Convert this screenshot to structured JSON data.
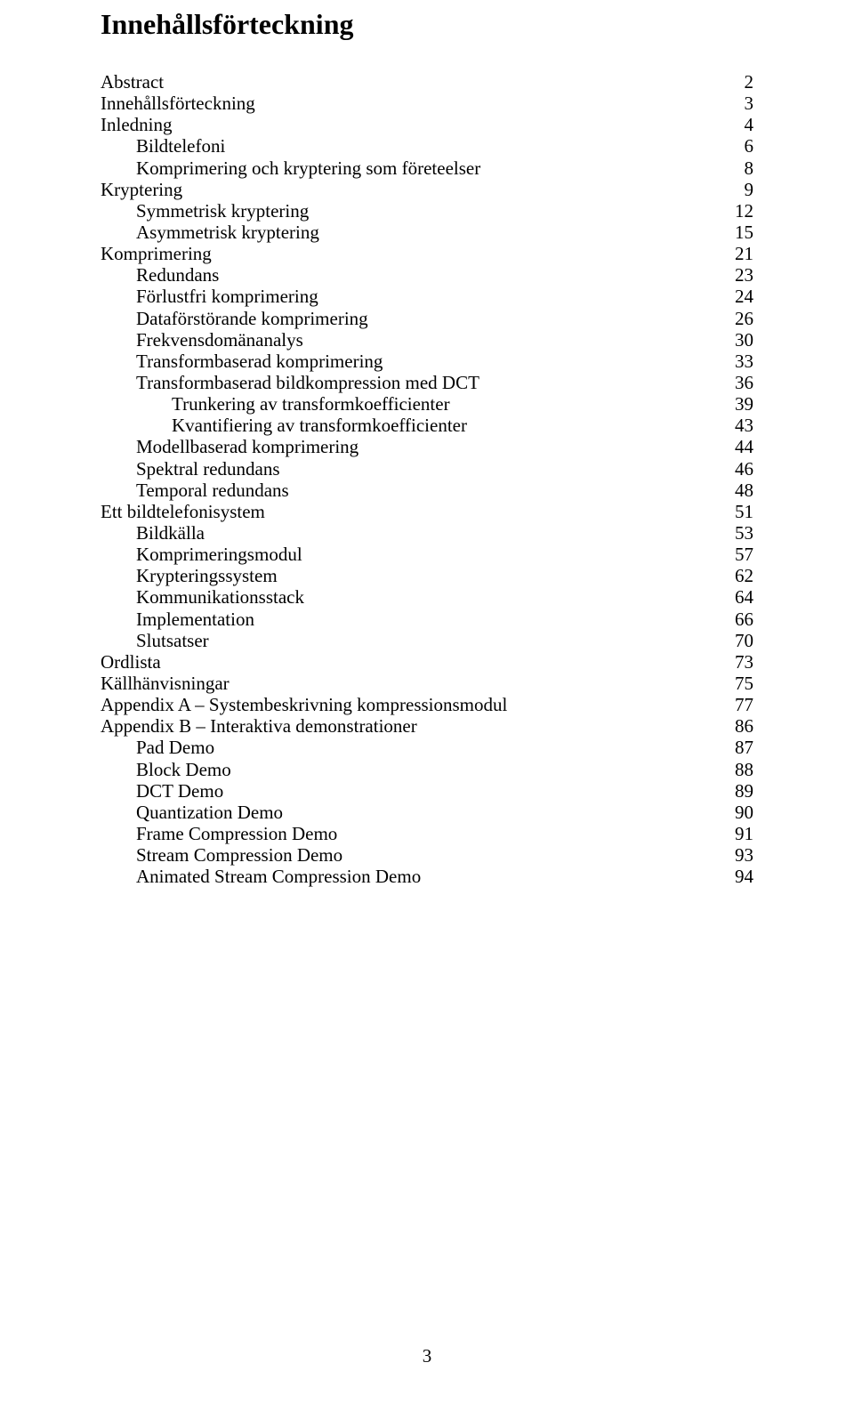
{
  "title": "Innehållsförteckning",
  "page_number": "3",
  "toc": [
    {
      "label": "Abstract",
      "page": "2",
      "indent": 0
    },
    {
      "label": "Innehållsförteckning",
      "page": "3",
      "indent": 0
    },
    {
      "label": "Inledning",
      "page": "4",
      "indent": 0
    },
    {
      "label": "Bildtelefoni",
      "page": "6",
      "indent": 1
    },
    {
      "label": "Komprimering och kryptering som företeelser",
      "page": "8",
      "indent": 1
    },
    {
      "label": "Kryptering",
      "page": "9",
      "indent": 0
    },
    {
      "label": "Symmetrisk kryptering",
      "page": "12",
      "indent": 1
    },
    {
      "label": "Asymmetrisk kryptering",
      "page": "15",
      "indent": 1
    },
    {
      "label": "Komprimering",
      "page": "21",
      "indent": 0
    },
    {
      "label": "Redundans",
      "page": "23",
      "indent": 1
    },
    {
      "label": "Förlustfri komprimering",
      "page": "24",
      "indent": 1
    },
    {
      "label": "Dataförstörande komprimering",
      "page": "26",
      "indent": 1
    },
    {
      "label": "Frekvensdomänanalys",
      "page": "30",
      "indent": 1
    },
    {
      "label": "Transformbaserad komprimering",
      "page": "33",
      "indent": 1
    },
    {
      "label": "Transformbaserad bildkompression med DCT",
      "page": "36",
      "indent": 1
    },
    {
      "label": "Trunkering av transformkoefficienter",
      "page": "39",
      "indent": 2
    },
    {
      "label": "Kvantifiering av transformkoefficienter",
      "page": "43",
      "indent": 2
    },
    {
      "label": "Modellbaserad komprimering",
      "page": "44",
      "indent": 1
    },
    {
      "label": "Spektral redundans",
      "page": "46",
      "indent": 1
    },
    {
      "label": "Temporal redundans",
      "page": "48",
      "indent": 1
    },
    {
      "label": "Ett bildtelefonisystem",
      "page": "51",
      "indent": 0
    },
    {
      "label": "Bildkälla",
      "page": "53",
      "indent": 1
    },
    {
      "label": "Komprimeringsmodul",
      "page": "57",
      "indent": 1
    },
    {
      "label": "Krypteringssystem",
      "page": "62",
      "indent": 1
    },
    {
      "label": "Kommunikationsstack",
      "page": "64",
      "indent": 1
    },
    {
      "label": "Implementation",
      "page": "66",
      "indent": 1
    },
    {
      "label": "Slutsatser",
      "page": "70",
      "indent": 1
    },
    {
      "label": "Ordlista",
      "page": "73",
      "indent": 0
    },
    {
      "label": "Källhänvisningar",
      "page": "75",
      "indent": 0
    },
    {
      "label": "Appendix A – Systembeskrivning kompressionsmodul",
      "page": "77",
      "indent": 0
    },
    {
      "label": "Appendix B – Interaktiva demonstrationer",
      "page": "86",
      "indent": 0
    },
    {
      "label": "Pad Demo",
      "page": "87",
      "indent": 1
    },
    {
      "label": "Block Demo",
      "page": "88",
      "indent": 1
    },
    {
      "label": "DCT Demo",
      "page": "89",
      "indent": 1
    },
    {
      "label": "Quantization Demo",
      "page": "90",
      "indent": 1
    },
    {
      "label": "Frame Compression Demo",
      "page": "91",
      "indent": 1
    },
    {
      "label": "Stream Compression Demo",
      "page": "93",
      "indent": 1
    },
    {
      "label": "Animated Stream Compression Demo",
      "page": "94",
      "indent": 1
    }
  ]
}
